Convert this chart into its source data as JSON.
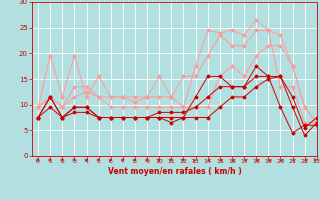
{
  "background_color": "#b2e0e0",
  "grid_color": "#ffffff",
  "xlabel": "Vent moyen/en rafales ( km/h )",
  "xlabel_color": "#cc0000",
  "tick_color": "#cc0000",
  "xlim": [
    -0.5,
    23
  ],
  "ylim": [
    0,
    30
  ],
  "yticks": [
    0,
    5,
    10,
    15,
    20,
    25,
    30
  ],
  "xticks": [
    0,
    1,
    2,
    3,
    4,
    5,
    6,
    7,
    8,
    9,
    10,
    11,
    12,
    13,
    14,
    15,
    16,
    17,
    18,
    19,
    20,
    21,
    22,
    23
  ],
  "lines_dark": [
    [
      7.5,
      11.5,
      7.5,
      9.5,
      9.5,
      7.5,
      7.5,
      7.5,
      7.5,
      7.5,
      7.5,
      6.5,
      7.5,
      11.5,
      15.5,
      15.5,
      13.5,
      13.5,
      17.5,
      15.5,
      9.5,
      4.5,
      6.0,
      6.0
    ],
    [
      7.5,
      11.5,
      7.5,
      9.5,
      9.5,
      7.5,
      7.5,
      7.5,
      7.5,
      7.5,
      7.5,
      7.5,
      7.5,
      7.5,
      7.5,
      9.5,
      11.5,
      11.5,
      13.5,
      15.0,
      15.5,
      9.5,
      4.0,
      6.5
    ],
    [
      7.5,
      9.5,
      7.5,
      8.5,
      8.5,
      7.5,
      7.5,
      7.5,
      7.5,
      7.5,
      8.5,
      8.5,
      8.5,
      9.5,
      11.5,
      13.5,
      13.5,
      13.5,
      15.5,
      15.5,
      15.5,
      11.5,
      5.5,
      7.5
    ]
  ],
  "lines_light": [
    [
      9.5,
      19.5,
      11.5,
      19.5,
      11.5,
      15.5,
      11.5,
      11.5,
      10.5,
      11.5,
      15.5,
      11.5,
      9.5,
      17.5,
      24.5,
      24.0,
      24.5,
      23.5,
      26.5,
      24.5,
      13.5,
      13.5,
      6.5,
      6.5
    ],
    [
      9.5,
      11.5,
      9.5,
      11.5,
      12.5,
      11.5,
      9.5,
      9.5,
      9.5,
      9.5,
      9.5,
      9.5,
      9.5,
      9.5,
      9.5,
      15.5,
      17.5,
      15.5,
      19.5,
      21.5,
      21.5,
      17.5,
      9.5,
      6.5
    ],
    [
      9.5,
      11.5,
      9.5,
      13.5,
      13.5,
      11.5,
      11.5,
      11.5,
      11.5,
      11.5,
      11.5,
      11.5,
      15.5,
      15.5,
      19.5,
      23.5,
      21.5,
      21.5,
      24.5,
      24.5,
      23.5,
      17.5,
      9.5,
      6.5
    ]
  ],
  "dark_color": "#cc0000",
  "light_color": "#ff9999",
  "marker": "D",
  "marker_size": 1.5,
  "line_width": 0.7,
  "arrow_color": "#cc0000"
}
